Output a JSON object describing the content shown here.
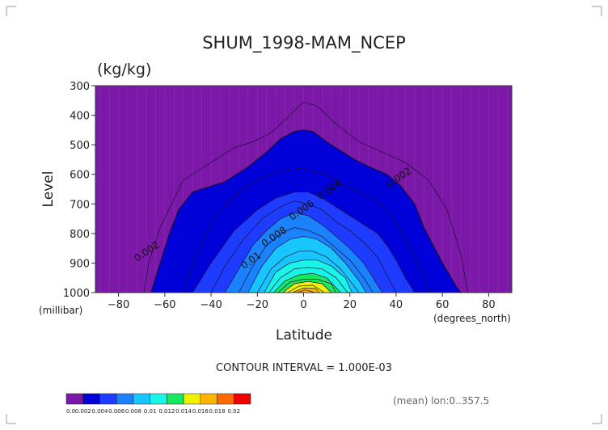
{
  "chart_data": {
    "type": "contour",
    "title": "SHUM_1998-MAM_NCEP",
    "units": "(kg/kg)",
    "xlabel": "Latitude",
    "ylabel": "Level",
    "x_unit_label": "(degrees_north)",
    "y_unit_label": "(millibar)",
    "xlim": [
      -90,
      90
    ],
    "ylim": [
      1000,
      300
    ],
    "x_ticks": [
      -80,
      -60,
      -40,
      -20,
      0,
      20,
      40,
      60,
      80
    ],
    "x_tick_labels": [
      "−80",
      "−60",
      "−40",
      "−20",
      "0",
      "20",
      "40",
      "60",
      "80"
    ],
    "y_ticks": [
      300,
      400,
      500,
      600,
      700,
      800,
      900,
      1000
    ],
    "y_tick_labels": [
      "300",
      "400",
      "500",
      "600",
      "700",
      "800",
      "900",
      "1000"
    ],
    "contour_interval_text": "CONTOUR INTERVAL = 1.000E-03",
    "mean_text": "(mean) lon:0..357.5",
    "contour_labels": [
      {
        "text": "0.002",
        "lat": -67,
        "lev": 870
      },
      {
        "text": "0.002",
        "lat": 42,
        "lev": 620
      },
      {
        "text": "0.004",
        "lat": 12,
        "lev": 660
      },
      {
        "text": "0.006",
        "lat": 0,
        "lev": 730
      },
      {
        "text": "0.008",
        "lat": -12,
        "lev": 820
      },
      {
        "text": "0.01",
        "lat": -22,
        "lev": 900
      }
    ],
    "colorbar": {
      "tick_labels": [
        "0.0",
        "0.002",
        "0.004",
        "0.006",
        "0.008",
        "0.01",
        "0.012",
        "0.014",
        "0.016",
        "0.018",
        "0.02"
      ],
      "colors": [
        "#7b18a8",
        "#0000d8",
        "#1e3cff",
        "#1a82ff",
        "#18c6ff",
        "#18f4e8",
        "#18e860",
        "#f0f000",
        "#ffb400",
        "#ff6a00",
        "#f00000"
      ]
    },
    "contours": [
      {
        "level": 0.001,
        "lats": [
          -69,
          -67,
          -62,
          -52,
          -40,
          -30,
          -22,
          -14,
          -6,
          0,
          6,
          14,
          24,
          34,
          44,
          54,
          62,
          68,
          71
        ],
        "levs": [
          1000,
          900,
          780,
          620,
          560,
          510,
          490,
          460,
          400,
          355,
          370,
          430,
          490,
          525,
          560,
          620,
          720,
          870,
          1000
        ]
      },
      {
        "level": 0.002,
        "lats": [
          -66,
          -62,
          -58,
          -54,
          -48,
          -40,
          -34,
          -24,
          -16,
          -10,
          -4,
          0,
          4,
          10,
          16,
          22,
          30,
          36,
          42,
          48,
          52,
          56,
          60,
          63,
          66,
          68
        ],
        "levs": [
          1000,
          900,
          800,
          720,
          660,
          640,
          625,
          575,
          525,
          480,
          455,
          450,
          455,
          490,
          520,
          550,
          580,
          600,
          640,
          700,
          780,
          840,
          900,
          940,
          980,
          1000
        ]
      },
      {
        "level": 0.003,
        "lats": [
          -52,
          -46,
          -38,
          -28,
          -18,
          -10,
          -2,
          4,
          10,
          16,
          24,
          30,
          36,
          42,
          48,
          55
        ],
        "levs": [
          1000,
          860,
          740,
          660,
          610,
          590,
          580,
          590,
          600,
          630,
          660,
          680,
          720,
          790,
          880,
          1000
        ]
      },
      {
        "level": 0.004,
        "lats": [
          -48,
          -40,
          -30,
          -20,
          -12,
          -4,
          2,
          8,
          14,
          20,
          26,
          32,
          36,
          40,
          44,
          48
        ],
        "levs": [
          1000,
          900,
          790,
          720,
          680,
          660,
          660,
          680,
          710,
          740,
          770,
          800,
          840,
          890,
          950,
          1000
        ]
      },
      {
        "level": 0.005,
        "lats": [
          -40,
          -34,
          -26,
          -18,
          -10,
          -4,
          2,
          8,
          14,
          20,
          26,
          32,
          36,
          40
        ],
        "levs": [
          1000,
          910,
          820,
          750,
          710,
          690,
          700,
          720,
          760,
          790,
          830,
          880,
          940,
          1000
        ]
      },
      {
        "level": 0.006,
        "lats": [
          -34,
          -28,
          -22,
          -16,
          -10,
          -4,
          2,
          8,
          14,
          20,
          26,
          30,
          34
        ],
        "levs": [
          1000,
          920,
          840,
          790,
          750,
          730,
          740,
          770,
          810,
          850,
          900,
          950,
          1000
        ]
      },
      {
        "level": 0.007,
        "lats": [
          -28,
          -22,
          -16,
          -10,
          -4,
          2,
          8,
          14,
          20,
          26,
          30
        ],
        "levs": [
          1000,
          910,
          840,
          800,
          780,
          790,
          810,
          850,
          890,
          950,
          1000
        ]
      },
      {
        "level": 0.008,
        "lats": [
          -24,
          -18,
          -12,
          -6,
          0,
          6,
          12,
          18,
          24,
          27
        ],
        "levs": [
          1000,
          910,
          850,
          820,
          810,
          820,
          850,
          900,
          960,
          1000
        ]
      },
      {
        "level": 0.009,
        "lats": [
          -20,
          -14,
          -8,
          -2,
          4,
          10,
          16,
          22,
          24
        ],
        "levs": [
          1000,
          920,
          880,
          860,
          860,
          880,
          920,
          980,
          1000
        ]
      },
      {
        "level": 0.01,
        "lats": [
          -17,
          -12,
          -6,
          0,
          6,
          12,
          18,
          21
        ],
        "levs": [
          1000,
          930,
          900,
          890,
          890,
          910,
          950,
          1000
        ]
      },
      {
        "level": 0.011,
        "lats": [
          -15,
          -10,
          -4,
          2,
          8,
          14,
          19
        ],
        "levs": [
          1000,
          950,
          920,
          915,
          920,
          950,
          1000
        ]
      },
      {
        "level": 0.012,
        "lats": [
          -13,
          -8,
          -2,
          4,
          10,
          16
        ],
        "levs": [
          1000,
          960,
          940,
          935,
          950,
          1000
        ]
      },
      {
        "level": 0.013,
        "lats": [
          -11,
          -6,
          0,
          6,
          12,
          14
        ],
        "levs": [
          1000,
          965,
          955,
          955,
          970,
          1000
        ]
      },
      {
        "level": 0.014,
        "lats": [
          -9,
          -4,
          2,
          8,
          12
        ],
        "levs": [
          1000,
          970,
          962,
          970,
          1000
        ]
      },
      {
        "level": 0.015,
        "lats": [
          -7,
          -2,
          4,
          9
        ],
        "levs": [
          1000,
          978,
          975,
          1000
        ]
      },
      {
        "level": 0.016,
        "lats": [
          -5,
          0,
          5,
          7
        ],
        "levs": [
          1000,
          985,
          986,
          1000
        ]
      },
      {
        "level": 0.017,
        "lats": [
          -3,
          1,
          5
        ],
        "levs": [
          1000,
          991,
          1000
        ]
      }
    ]
  }
}
